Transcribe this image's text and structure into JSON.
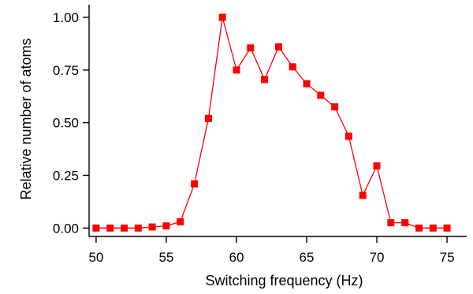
{
  "chart_data": {
    "type": "line",
    "title": "",
    "xlabel": "Switching frequency (Hz)",
    "ylabel": "Relative number of atoms",
    "xlim": [
      49.5,
      76.4
    ],
    "ylim": [
      -0.04,
      1.06
    ],
    "xticks": [
      50,
      55,
      60,
      65,
      70,
      75
    ],
    "xtick_labels": [
      "50",
      "55",
      "60",
      "65",
      "70",
      "75"
    ],
    "yticks": [
      0.0,
      0.25,
      0.5,
      0.75,
      1.0
    ],
    "ytick_labels": [
      "0.00",
      "0.25",
      "0.50",
      "0.75",
      "1.00"
    ],
    "grid": false,
    "legend": "none",
    "series": [
      {
        "color": "#ff0000",
        "marker": "square",
        "x": [
          50,
          51,
          52,
          53,
          54,
          55,
          56,
          57,
          58,
          59,
          60,
          61,
          62,
          63,
          64,
          65,
          66,
          67,
          68,
          69,
          70,
          71,
          72,
          73,
          74,
          75
        ],
        "y": [
          0.0,
          0.0,
          0.0,
          0.0,
          0.005,
          0.01,
          0.03,
          0.21,
          0.52,
          1.0,
          0.75,
          0.855,
          0.705,
          0.86,
          0.765,
          0.685,
          0.63,
          0.575,
          0.435,
          0.155,
          0.295,
          0.025,
          0.025,
          0.0,
          0.0,
          0.0
        ]
      }
    ]
  }
}
